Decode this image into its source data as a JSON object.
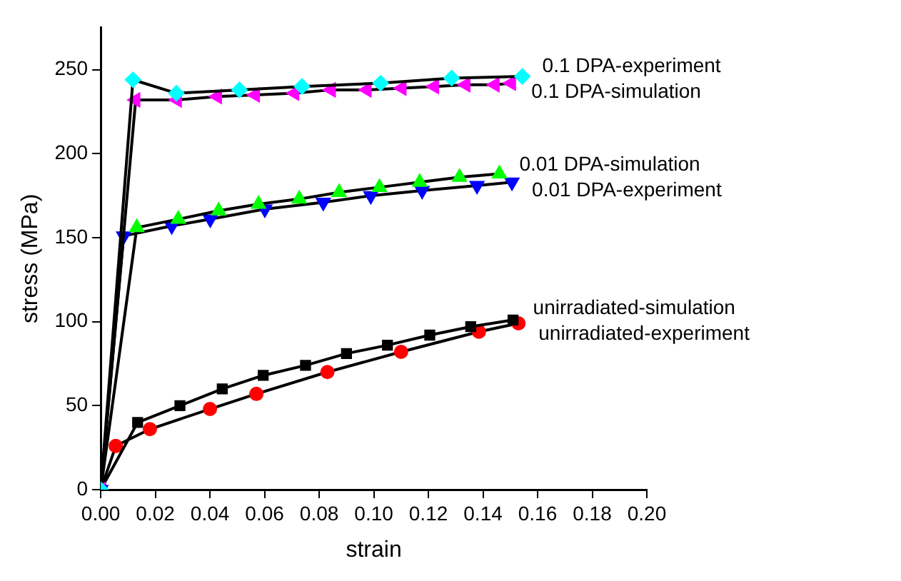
{
  "chart_data": {
    "type": "line",
    "xlabel": "strain",
    "ylabel": "stress (MPa)",
    "xlim": [
      0,
      0.2
    ],
    "ylim": [
      0,
      275
    ],
    "xticks": [
      {
        "value": 0,
        "label": "0.00"
      },
      {
        "value": 0.02,
        "label": "0.02"
      },
      {
        "value": 0.04,
        "label": "0.04"
      },
      {
        "value": 0.06,
        "label": "0.06"
      },
      {
        "value": 0.08,
        "label": "0.08"
      },
      {
        "value": 0.1,
        "label": "0.10"
      },
      {
        "value": 0.12,
        "label": "0.12"
      },
      {
        "value": 0.14,
        "label": "0.14"
      },
      {
        "value": 0.16,
        "label": "0.16"
      },
      {
        "value": 0.18,
        "label": "0.18"
      },
      {
        "value": 0.2,
        "label": "0.20"
      }
    ],
    "yticks": [
      0,
      50,
      100,
      150,
      200,
      250
    ],
    "grid": false,
    "legend": false,
    "series": [
      {
        "name": "0.1 DPA-experiment",
        "color": "#00ffff",
        "marker": "diamond",
        "x": [
          0,
          0.0118,
          0.0277,
          0.0508,
          0.0737,
          0.1025,
          0.1285,
          0.1544
        ],
        "values": [
          0,
          244,
          236,
          238,
          240,
          242,
          245,
          246
        ]
      },
      {
        "name": "0.1 DPA-simulation",
        "color": "#ff00ff",
        "marker": "triangle-left",
        "x": [
          0,
          0.0128,
          0.028,
          0.0427,
          0.0566,
          0.071,
          0.0844,
          0.0975,
          0.1103,
          0.1222,
          0.1337,
          0.1444,
          0.1504
        ],
        "values": [
          0,
          232,
          232,
          234,
          235,
          236,
          238,
          238,
          239,
          240,
          241,
          241,
          242
        ]
      },
      {
        "name": "0.01 DPA-simulation",
        "color": "#00ff00",
        "marker": "triangle",
        "x": [
          0,
          0.0132,
          0.0284,
          0.0432,
          0.0578,
          0.0727,
          0.0873,
          0.1021,
          0.1168,
          0.1314,
          0.146
        ],
        "values": [
          0,
          156,
          161,
          166,
          170,
          173,
          177,
          180,
          183,
          186,
          188
        ]
      },
      {
        "name": "0.01 DPA-experiment",
        "color": "#0000ff",
        "marker": "triangle-down",
        "x": [
          0,
          0.0084,
          0.026,
          0.0401,
          0.0601,
          0.0815,
          0.0989,
          0.1177,
          0.1378,
          0.1506
        ],
        "values": [
          0,
          151,
          157,
          161,
          167,
          171,
          175,
          178,
          181,
          183
        ]
      },
      {
        "name": "unirradiated-simulation",
        "color": "#000000",
        "marker": "square",
        "x": [
          0,
          0.0135,
          0.029,
          0.0445,
          0.0595,
          0.075,
          0.09,
          0.105,
          0.1205,
          0.1355,
          0.151
        ],
        "values": [
          0,
          40,
          50,
          60,
          68,
          74,
          81,
          86,
          92,
          97,
          101
        ]
      },
      {
        "name": "unirradiated-experiment",
        "color": "#ff0000",
        "marker": "circle",
        "x": [
          0,
          0.0055,
          0.018,
          0.04,
          0.057,
          0.083,
          0.11,
          0.1385,
          0.153
        ],
        "values": [
          0,
          26,
          36,
          48,
          57,
          70,
          82,
          94,
          99
        ]
      }
    ]
  }
}
